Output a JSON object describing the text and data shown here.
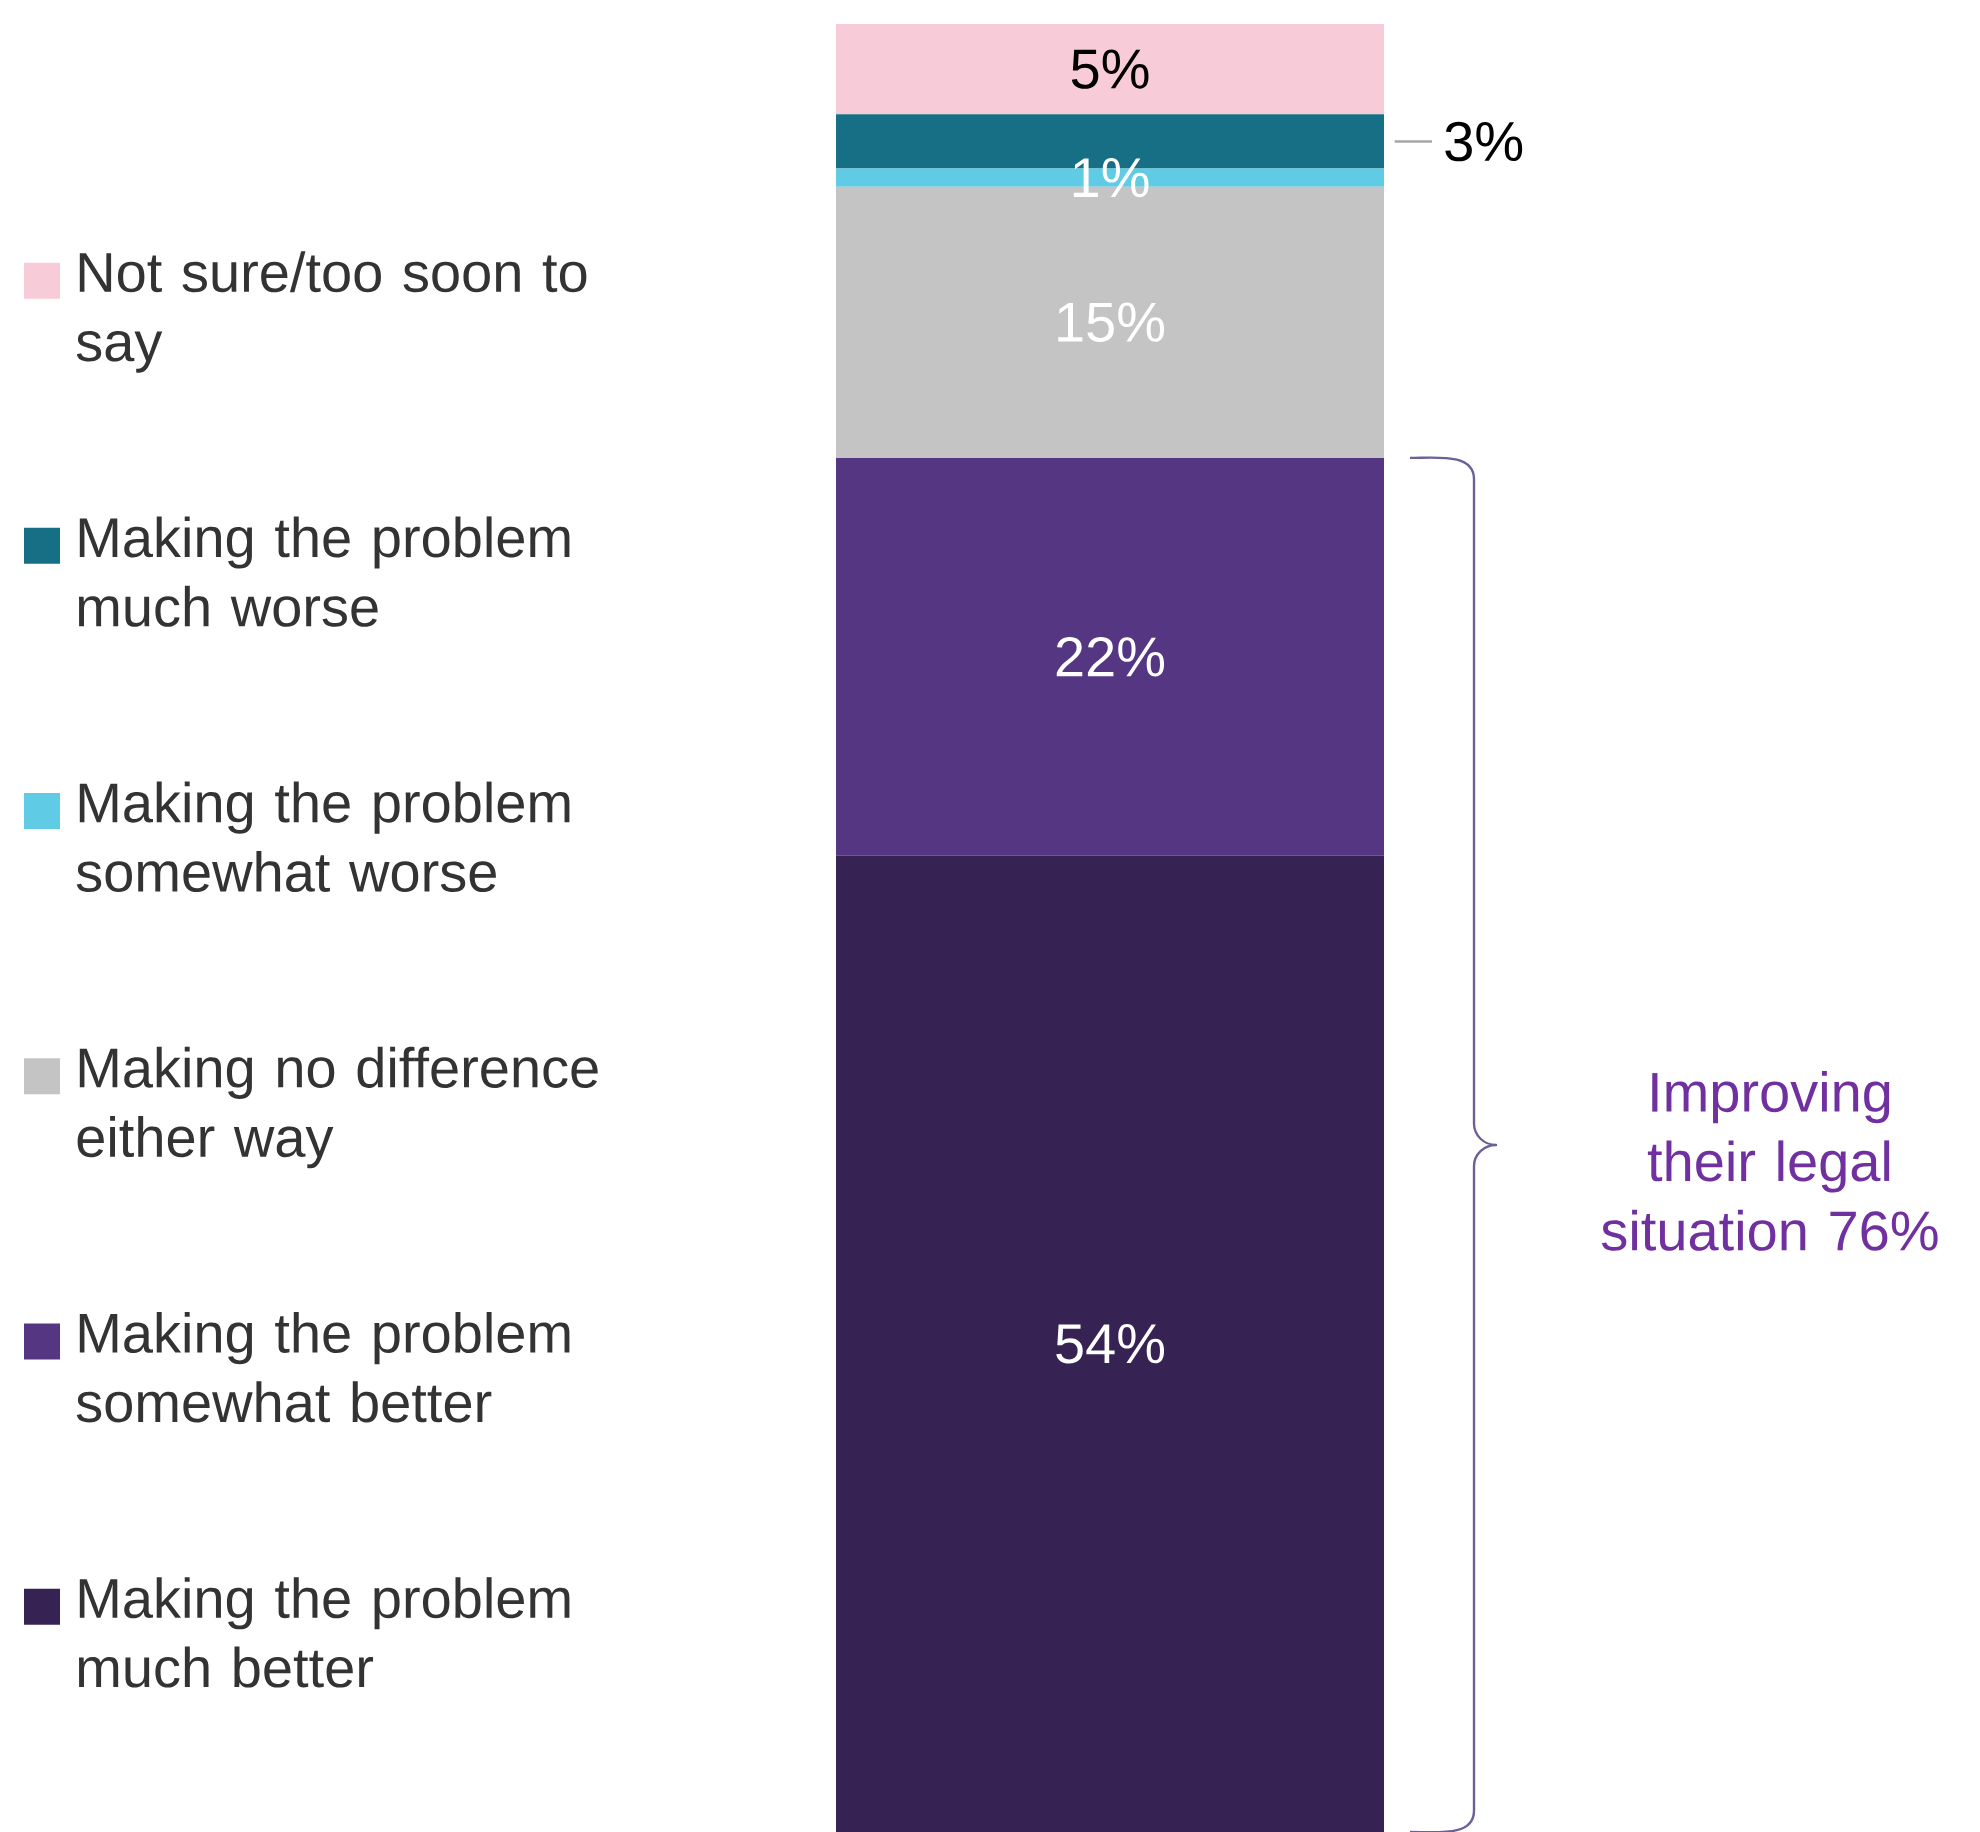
{
  "chart_data": {
    "type": "bar",
    "stacked": true,
    "categories": [
      null
    ],
    "ylim": [
      0,
      100
    ],
    "tick_labels": false,
    "legend": "left",
    "series": [
      {
        "name": "Making the problem much better",
        "color": "#372254",
        "values": [
          54
        ],
        "value_labels": [
          "54%"
        ]
      },
      {
        "name": "Making the problem somewhat better",
        "color": "#553683",
        "values": [
          22
        ],
        "value_labels": [
          "22%"
        ]
      },
      {
        "name": "Making no difference either way",
        "color": "#c4c4c4",
        "values": [
          15
        ],
        "value_labels": [
          "15%"
        ]
      },
      {
        "name": "Making the problem somewhat worse",
        "color": "#5fcbe4",
        "values": [
          1
        ],
        "value_labels": [
          "1%"
        ]
      },
      {
        "name": "Making the problem much worse",
        "color": "#176f85",
        "values": [
          3
        ],
        "value_labels": [
          "3%"
        ]
      },
      {
        "name": "Not sure/too soon to say",
        "color": "#f8cbd8",
        "values": [
          5
        ],
        "value_labels": [
          "5%"
        ]
      }
    ],
    "annotations": [
      "Improving their legal situation 76%"
    ]
  }
}
